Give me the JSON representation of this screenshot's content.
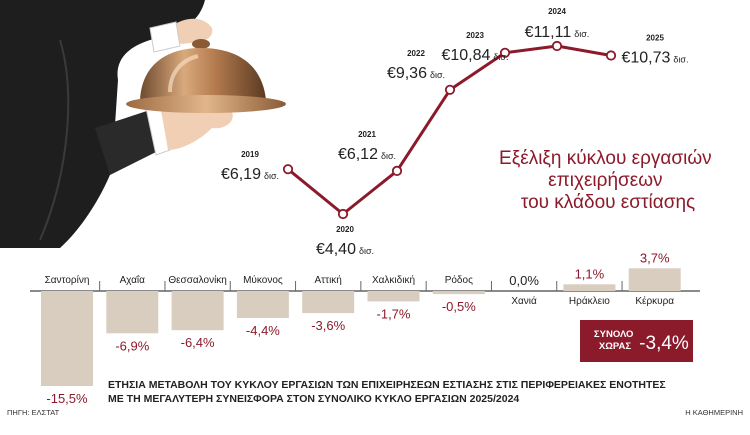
{
  "chart_data": [
    {
      "type": "line",
      "title": "Εξέλιξη κύκλου εργασιών επιχειρήσεων του κλάδου εστίασης",
      "title_lines": [
        "Εξέλιξη κύκλου εργασιών",
        "επιχειρήσεων",
        "του κλάδου εστίασης"
      ],
      "x": [
        "2019",
        "2020",
        "2021",
        "2022",
        "2023",
        "2024",
        "2025"
      ],
      "values": [
        6.19,
        4.4,
        6.12,
        9.36,
        10.84,
        11.11,
        10.73
      ],
      "value_labels": [
        "€6,19",
        "€4,40",
        "€6,12",
        "€9,36",
        "€10,84",
        "€11,11",
        "€10,73"
      ],
      "unit": "δισ.",
      "line_color": "#8b1a2b"
    },
    {
      "type": "bar",
      "title_lines": [
        "ΕΤΗΣΙΑ ΜΕΤΑΒΟΛΗ ΤΟΥ ΚΥΚΛΟΥ ΕΡΓΑΣΙΩΝ ΤΩΝ ΕΠΙΧΕΙΡΗΣΕΩΝ ΕΣΤΙΑΣΗΣ ΣΤΙΣ ΠΕΡΙΦΕΡΕΙΑΚΕΣ ΕΝΟΤΗΤΕΣ",
        "ΜΕ ΤΗ ΜΕΓΑΛΥΤΕΡΗ ΣΥΝΕΙΣΦΟΡΑ ΣΤΟΝ ΣΥΝΟΛΙΚΟ ΚΥΚΛΟ ΕΡΓΑΣΙΩΝ 2025/2024"
      ],
      "categories": [
        "Σαντορίνη",
        "Αχαΐα",
        "Θεσσαλονίκη",
        "Μύκονος",
        "Αττική",
        "Χαλκιδική",
        "Ρόδος",
        "Χανιά",
        "Ηράκλειο",
        "Κέρκυρα"
      ],
      "values": [
        -15.5,
        -6.9,
        -6.4,
        -4.4,
        -3.6,
        -1.7,
        -0.5,
        0.0,
        1.1,
        3.7
      ],
      "value_labels": [
        "-15,5%",
        "-6,9%",
        "-6,4%",
        "-4,4%",
        "-3,6%",
        "-1,7%",
        "-0,5%",
        "0,0%",
        "1,1%",
        "3,7%"
      ],
      "bar_color": "#d9cdbf",
      "negative_label_color": "#8b1a2b",
      "positive_label_color": "#8b1a2b",
      "zero_label_color": "#222222",
      "total": {
        "label_lines": [
          "ΣΥΝΟΛΟ",
          "ΧΩΡΑΣ"
        ],
        "value_label": "-3,4%",
        "value": -3.4,
        "color": "#8b1a2b"
      }
    }
  ],
  "footer": {
    "source": "ΠΗΓΗ: ΕΛΣΤΑΤ",
    "publisher": "Η ΚΑΘΗΜΕΡΙΝΗ"
  },
  "illustration": {
    "subject": "waiter-hand-holding-cloche"
  }
}
